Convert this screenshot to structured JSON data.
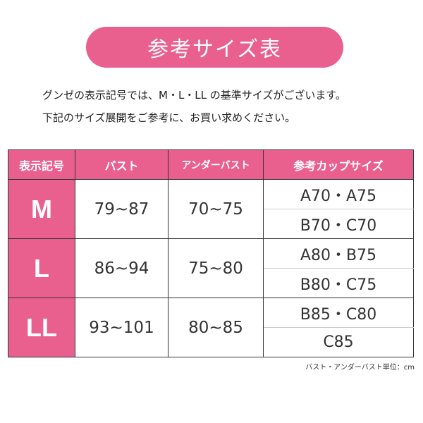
{
  "title": "参考サイズ表",
  "intro": [
    "グンゼの表示記号では、M・L・LL の基準サイズがございます。",
    "下記のサイズ展開をご参考に、お買い求めください。"
  ],
  "headers": [
    "表示記号",
    "バスト",
    "アンダーバスト",
    "参考カップサイズ"
  ],
  "rows": [
    {
      "size": "M",
      "bust": "79~87",
      "under": "70~75",
      "cups": [
        "A70・A75",
        "B70・C70"
      ]
    },
    {
      "size": "L",
      "bust": "86~94",
      "under": "75~80",
      "cups": [
        "A80・B75",
        "B80・C75"
      ]
    },
    {
      "size": "LL",
      "bust": "93~101",
      "under": "80~85",
      "cups": [
        "B85・C80",
        "C85"
      ]
    }
  ],
  "note": "バスト・アンダーバスト単位：cm",
  "colors": {
    "accent": "#e9608e"
  }
}
